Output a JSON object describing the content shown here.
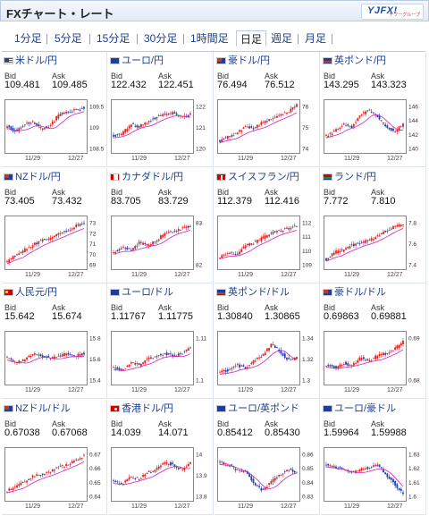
{
  "header": {
    "title": "FXチャート・レート",
    "logo": "YJFX!",
    "logo_sub": "ヤフーグループ"
  },
  "tabs": [
    "1分足",
    "5分足",
    "15分足",
    "30分足",
    "1時間足",
    "日足",
    "週足",
    "月足"
  ],
  "active_tab": "日足",
  "labels": {
    "bid": "Bid",
    "ask": "Ask"
  },
  "pairs": [
    {
      "name": "米ドル/円",
      "flag": "us",
      "bid": "109.481",
      "ask": "109.485",
      "x_labels": [
        "11/29",
        "12/27"
      ],
      "y_ticks": [
        "109.5",
        "109",
        "108.5"
      ]
    },
    {
      "name": "ユーロ/円",
      "flag": "eu",
      "bid": "122.432",
      "ask": "122.451",
      "x_labels": [
        "11/29",
        "12/27"
      ],
      "y_ticks": [
        "122",
        "121",
        "120"
      ]
    },
    {
      "name": "豪ドル/円",
      "flag": "au",
      "bid": "76.494",
      "ask": "76.512",
      "x_labels": [
        "11/29",
        "12/27"
      ],
      "y_ticks": [
        "76",
        "75",
        "74"
      ]
    },
    {
      "name": "英ポンド/円",
      "flag": "gb",
      "bid": "143.295",
      "ask": "143.323",
      "x_labels": [
        "11/29",
        "12/27"
      ],
      "y_ticks": [
        "146",
        "144",
        "142",
        "140"
      ]
    },
    {
      "name": "NZドル/円",
      "flag": "nz",
      "bid": "73.405",
      "ask": "73.432",
      "x_labels": [
        "11/29",
        "12/27"
      ],
      "y_ticks": [
        "73",
        "72",
        "71",
        "70",
        "69"
      ]
    },
    {
      "name": "カナダドル/円",
      "flag": "ca",
      "bid": "83.705",
      "ask": "83.729",
      "x_labels": [
        "11/29",
        "12/27"
      ],
      "y_ticks": [
        "83",
        "82"
      ]
    },
    {
      "name": "スイスフラン/円",
      "flag": "ch",
      "bid": "112.379",
      "ask": "112.416",
      "x_labels": [
        "11/29",
        "12/27"
      ],
      "y_ticks": [
        "112",
        "111",
        "110",
        "109"
      ]
    },
    {
      "name": "ランド/円",
      "flag": "za",
      "bid": "7.772",
      "ask": "7.810",
      "x_labels": [
        "11/29",
        "12/27"
      ],
      "y_ticks": [
        "7.8",
        "7.6",
        "7.4"
      ]
    },
    {
      "name": "人民元/円",
      "flag": "cn",
      "bid": "15.642",
      "ask": "15.674",
      "x_labels": [
        "11/29",
        "12/27"
      ],
      "y_ticks": [
        "15.8",
        "15.6",
        "15.4"
      ]
    },
    {
      "name": "ユーロ/ドル",
      "flag": "eu",
      "bid": "1.11767",
      "ask": "1.11775",
      "x_labels": [
        "11/29",
        "12/27"
      ],
      "y_ticks": [
        "1.11",
        "1.1"
      ]
    },
    {
      "name": "英ポンド/ドル",
      "flag": "gb",
      "bid": "1.30840",
      "ask": "1.30865",
      "x_labels": [
        "11/29",
        "12/27"
      ],
      "y_ticks": [
        "1.34",
        "1.32",
        "1.3"
      ]
    },
    {
      "name": "豪ドル/ドル",
      "flag": "au",
      "bid": "0.69863",
      "ask": "0.69881",
      "x_labels": [
        "11/29",
        "12/27"
      ],
      "y_ticks": [
        "0.69",
        "0.68"
      ]
    },
    {
      "name": "NZドル/ドル",
      "flag": "nz",
      "bid": "0.67038",
      "ask": "0.67068",
      "x_labels": [
        "11/29",
        "12/27"
      ],
      "y_ticks": [
        "0.67",
        "0.66",
        "0.65",
        "0.64"
      ]
    },
    {
      "name": "香港ドル/円",
      "flag": "hk",
      "bid": "14.039",
      "ask": "14.071",
      "x_labels": [
        "11/29",
        "12/27"
      ],
      "y_ticks": [
        "14",
        "13.9",
        "13.8"
      ]
    },
    {
      "name": "ユーロ/英ポンド",
      "flag": "eu",
      "bid": "0.85412",
      "ask": "0.85430",
      "x_labels": [
        "11/29",
        "12/27"
      ],
      "y_ticks": [
        "0.86",
        "0.85",
        "0.84",
        "0.83"
      ]
    },
    {
      "name": "ユーロ/豪ドル",
      "flag": "eu",
      "bid": "1.59964",
      "ask": "1.59988",
      "x_labels": [
        "11/29",
        "12/27"
      ],
      "y_ticks": [
        "1.63",
        "1.62",
        "1.61",
        "1.6"
      ]
    }
  ],
  "colors": {
    "up": "#e02020",
    "down": "#1f3fb0",
    "ma": "#d020c0",
    "link": "#1c3f8f"
  }
}
